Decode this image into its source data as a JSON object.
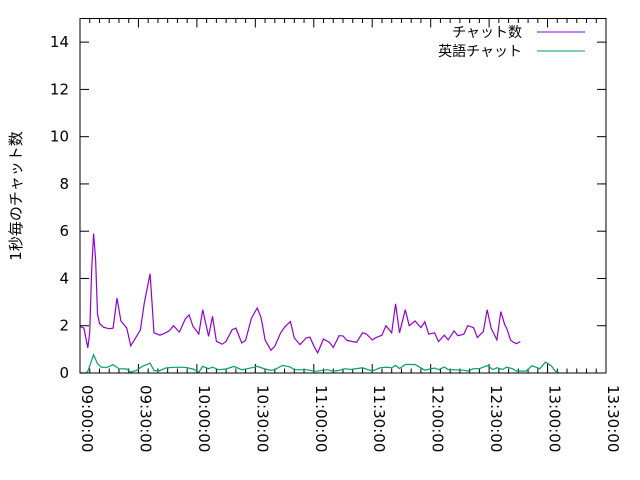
{
  "chart_data": {
    "type": "line",
    "title": "",
    "xlabel": "",
    "ylabel": "1秒毎のチャット数",
    "xlim": [
      "09:00:00",
      "13:30:00"
    ],
    "ylim": [
      0,
      15
    ],
    "x_ticks": [
      "09:00:00",
      "09:30:00",
      "10:00:00",
      "10:30:00",
      "11:00:00",
      "11:30:00",
      "12:00:00",
      "12:30:00",
      "13:00:00",
      "13:30:00"
    ],
    "y_ticks": [
      "0",
      "2",
      "4",
      "6",
      "8",
      "10",
      "12",
      "14"
    ],
    "grid": false,
    "legend": "top-right",
    "series": [
      {
        "name": "チャット数",
        "color": "#9400d3",
        "x": [
          "09:00:00",
          "09:02:00",
          "09:04:00",
          "09:05:00",
          "09:06:00",
          "09:07:00",
          "09:08:00",
          "09:09:00",
          "09:10:00",
          "09:12:00",
          "09:15:00",
          "09:17:00",
          "09:19:00",
          "09:21:00",
          "09:24:00",
          "09:26:00",
          "09:29:00",
          "09:31:00",
          "09:33:00",
          "09:36:00",
          "09:38:00",
          "09:41:00",
          "09:44:00",
          "09:46:00",
          "09:48:00",
          "09:51:00",
          "09:54:00",
          "09:56:00",
          "09:58:00",
          "10:01:00",
          "10:03:00",
          "10:06:00",
          "10:08:00",
          "10:10:00",
          "10:13:00",
          "10:15:00",
          "10:18:00",
          "10:20:00",
          "10:23:00",
          "10:25:00",
          "10:28:00",
          "10:31:00",
          "10:33:00",
          "10:35:00",
          "10:38:00",
          "10:40:00",
          "10:43:00",
          "10:45:00",
          "10:48:00",
          "10:50:00",
          "10:53:00",
          "10:56:00",
          "10:58:00",
          "11:00:00",
          "11:02:00",
          "11:05:00",
          "11:08:00",
          "11:10:00",
          "11:13:00",
          "11:15:00",
          "11:17:00",
          "11:20:00",
          "11:22:00",
          "11:25:00",
          "11:27:00",
          "11:30:00",
          "11:32:00",
          "11:35:00",
          "11:37:00",
          "11:40:00",
          "11:42:00",
          "11:44:00",
          "11:47:00",
          "11:49:00",
          "11:52:00",
          "11:55:00",
          "11:57:00",
          "11:59:00",
          "12:02:00",
          "12:04:00",
          "12:07:00",
          "12:09:00",
          "12:12:00",
          "12:14:00",
          "12:17:00",
          "12:19:00",
          "12:22:00",
          "12:24:00",
          "12:27:00",
          "12:29:00",
          "12:31:00",
          "12:34:00",
          "12:36:00",
          "12:38:00",
          "12:39:00",
          "12:41:00",
          "12:42:00",
          "12:44:00",
          "12:46:00"
        ],
        "y": [
          1.97,
          1.9,
          1.06,
          1.7,
          4.4,
          5.9,
          4.8,
          2.5,
          2.1,
          1.94,
          1.87,
          1.9,
          3.17,
          2.2,
          1.9,
          1.15,
          1.55,
          1.83,
          2.96,
          4.2,
          1.7,
          1.6,
          1.7,
          1.8,
          2.0,
          1.73,
          2.28,
          2.46,
          1.97,
          1.65,
          2.68,
          1.55,
          2.4,
          1.34,
          1.22,
          1.34,
          1.83,
          1.9,
          1.27,
          1.38,
          2.32,
          2.75,
          2.32,
          1.4,
          0.96,
          1.13,
          1.7,
          1.94,
          2.18,
          1.48,
          1.2,
          1.48,
          1.52,
          1.15,
          0.85,
          1.44,
          1.3,
          1.08,
          1.58,
          1.57,
          1.38,
          1.33,
          1.3,
          1.7,
          1.65,
          1.4,
          1.5,
          1.6,
          2.0,
          1.7,
          2.93,
          1.7,
          2.68,
          2.0,
          2.2,
          1.92,
          2.17,
          1.64,
          1.7,
          1.33,
          1.6,
          1.4,
          1.78,
          1.58,
          1.64,
          2.0,
          1.92,
          1.5,
          1.75,
          2.68,
          1.9,
          1.4,
          2.6,
          2.05,
          1.9,
          1.4,
          1.33,
          1.24,
          1.33
        ]
      },
      {
        "name": "英語チャット",
        "color": "#009e73",
        "x": [
          "09:00:00",
          "09:03:00",
          "09:04:00",
          "09:07:00",
          "09:09:00",
          "09:11:00",
          "09:14:00",
          "09:17:00",
          "09:20:00",
          "09:24:00",
          "09:26:00",
          "09:29:00",
          "09:32:00",
          "09:36:00",
          "09:38:00",
          "09:41:00",
          "09:44:00",
          "09:48:00",
          "09:54:00",
          "09:58:00",
          "10:01:00",
          "10:03:00",
          "10:06:00",
          "10:08:00",
          "10:11:00",
          "10:15:00",
          "10:19:00",
          "10:23:00",
          "10:26:00",
          "10:31:00",
          "10:35:00",
          "10:38:00",
          "10:40:00",
          "10:44:00",
          "10:48:00",
          "10:50:00",
          "10:56:00",
          "11:01:00",
          "11:07:00",
          "11:10:00",
          "11:13:00",
          "11:16:00",
          "11:19:00",
          "11:25:00",
          "11:30:00",
          "11:34:00",
          "11:37:00",
          "11:40:00",
          "11:42:00",
          "11:44:00",
          "11:47:00",
          "11:52:00",
          "11:57:00",
          "12:02:00",
          "12:04:00",
          "12:07:00",
          "12:09:00",
          "12:17:00",
          "12:19:00",
          "12:22:00",
          "12:25:00",
          "12:29:00",
          "12:32:00",
          "12:34:00",
          "12:37:00",
          "12:39:00",
          "12:42:00",
          "12:44:00",
          "12:49:00",
          "12:52:00",
          "12:56:00",
          "12:59:00",
          "13:02:00",
          "13:04:00",
          "13:06:00"
        ],
        "y": [
          0,
          0,
          0.07,
          0.77,
          0.39,
          0.24,
          0.24,
          0.35,
          0.18,
          0.17,
          0.04,
          0.11,
          0.28,
          0.42,
          0.1,
          0.1,
          0.21,
          0.24,
          0.24,
          0.17,
          0.03,
          0.28,
          0.18,
          0.25,
          0.14,
          0.17,
          0.28,
          0.14,
          0.18,
          0.28,
          0.17,
          0.11,
          0.14,
          0.32,
          0.25,
          0.14,
          0.14,
          0.07,
          0.14,
          0.07,
          0.11,
          0.18,
          0.15,
          0.22,
          0.08,
          0.22,
          0.25,
          0.22,
          0.32,
          0.19,
          0.36,
          0.36,
          0.12,
          0.21,
          0.14,
          0.25,
          0.15,
          0.12,
          0.08,
          0.18,
          0.18,
          0.31,
          0.15,
          0.22,
          0.15,
          0.25,
          0.18,
          0.08,
          0.08,
          0.31,
          0.18,
          0.46,
          0.29,
          0.08,
          0
        ]
      }
    ]
  }
}
